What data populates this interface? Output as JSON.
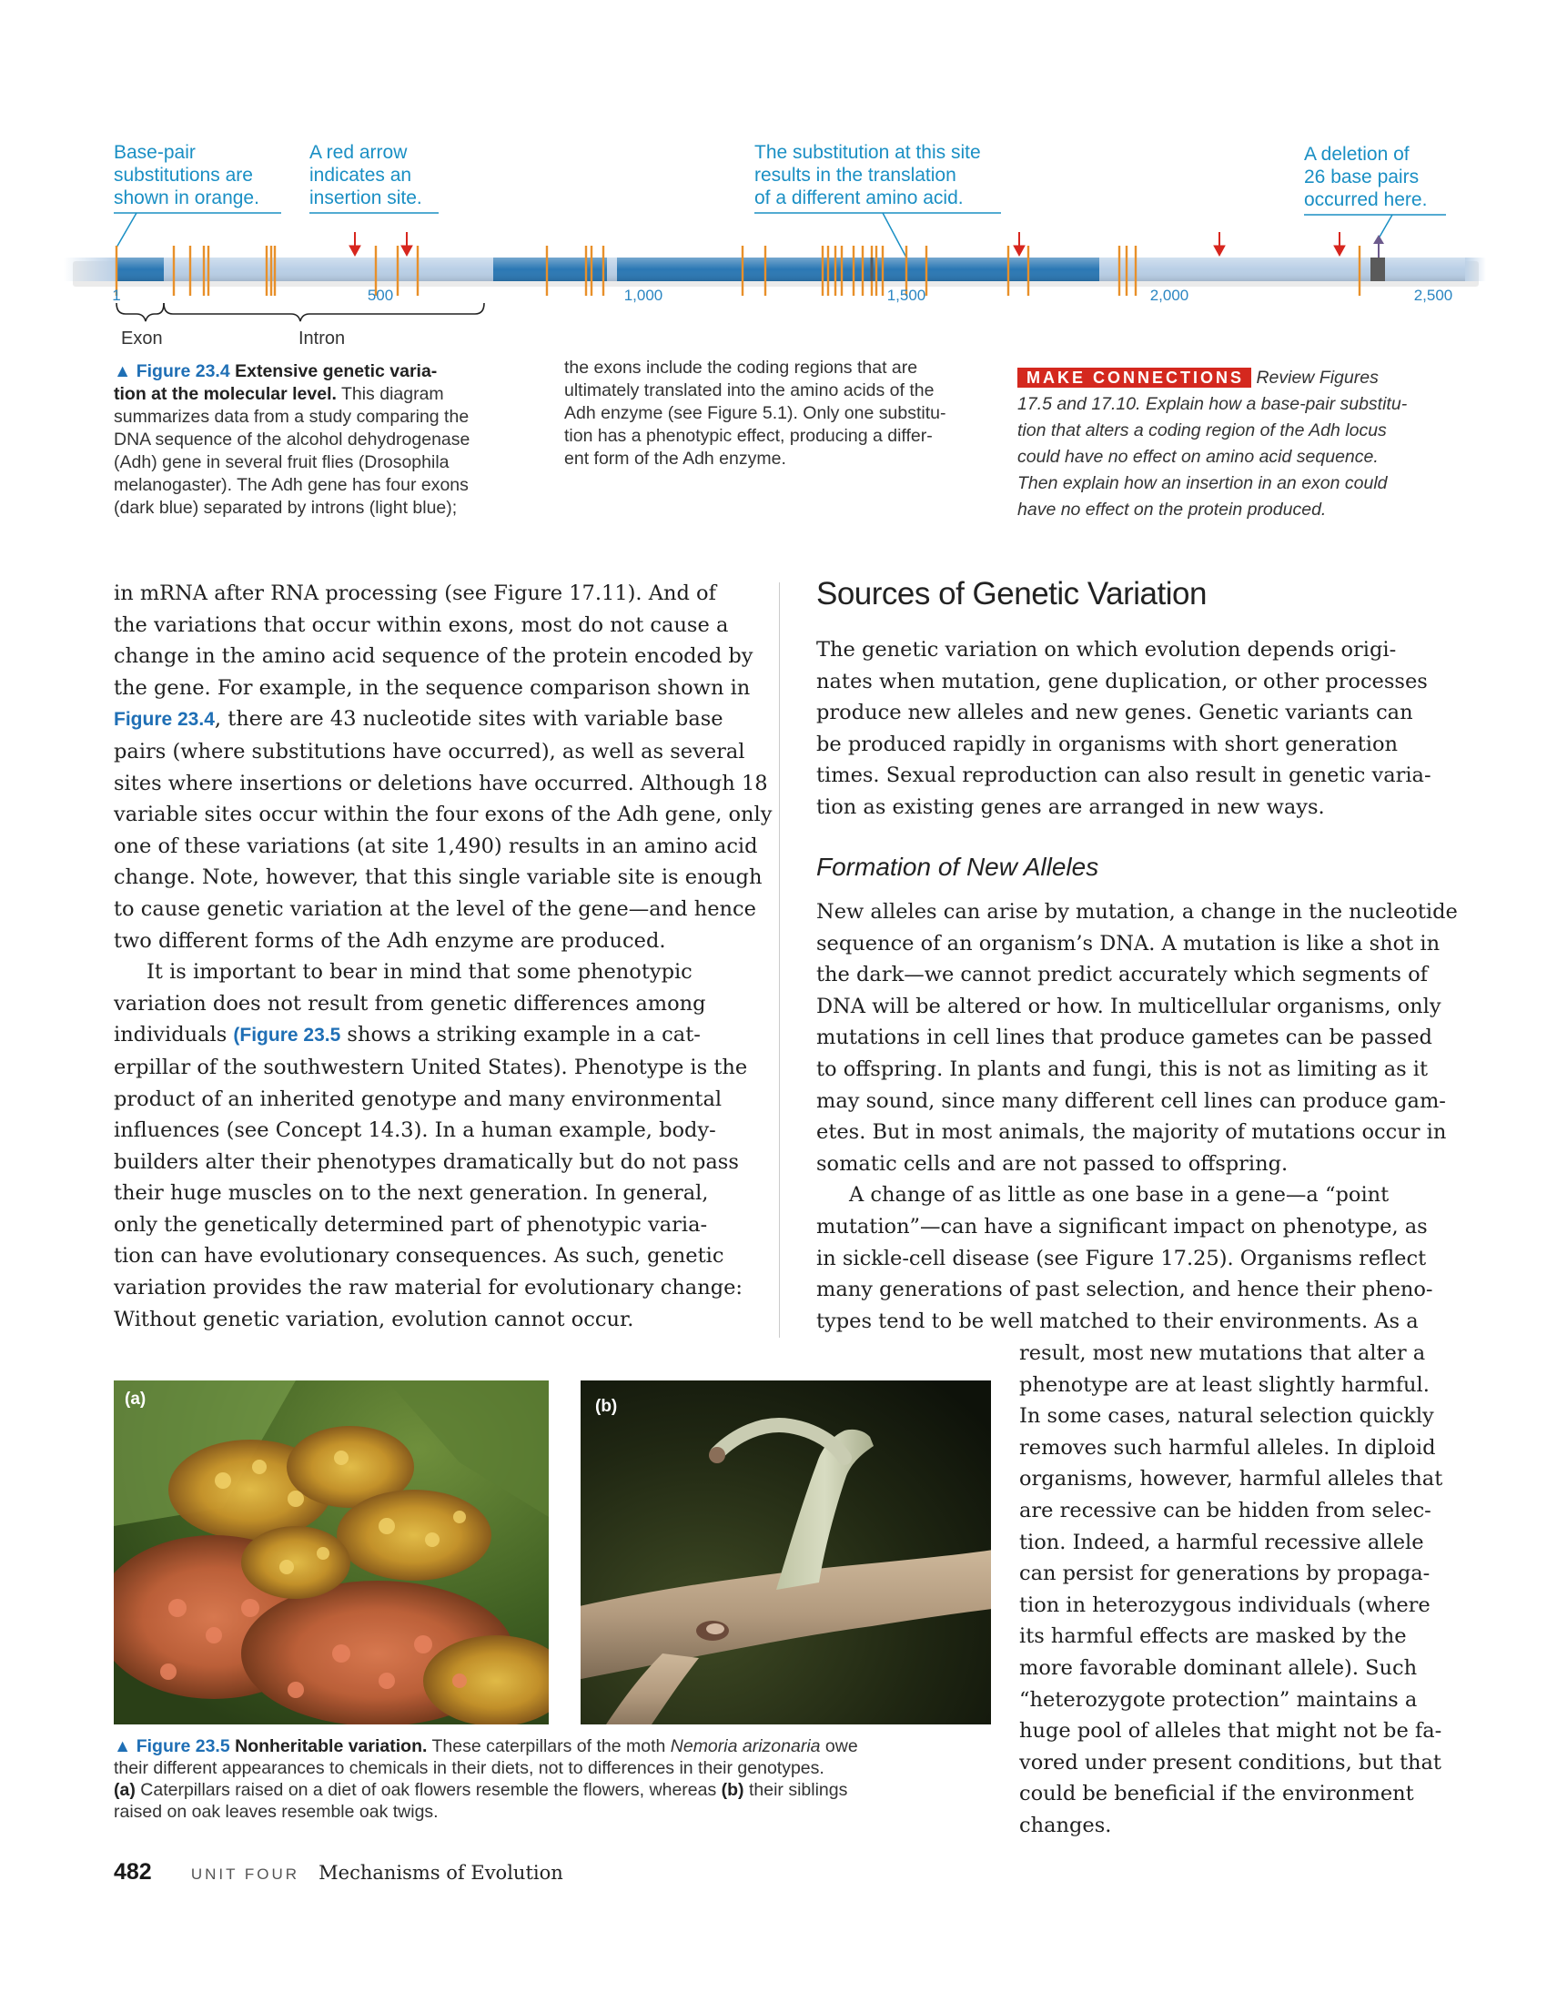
{
  "figure_23_4": {
    "callouts": {
      "substitutions": [
        "Base-pair",
        "substitutions are",
        "shown in orange."
      ],
      "insertion": [
        "A red arrow",
        "indicates an",
        "insertion site."
      ],
      "amino_acid": [
        "The substitution at this site",
        "results in the translation",
        "of a different amino acid."
      ],
      "deletion": [
        "A deletion of",
        "26 base pairs",
        "occurred here."
      ]
    },
    "axis_ticks": [
      "1",
      "500",
      "1,000",
      "1,500",
      "2,000",
      "2,500"
    ],
    "exon_label": "Exon",
    "intron_label": "Intron",
    "colors": {
      "exon": "#2b78b4",
      "intron": "#b9cfe6",
      "substitution": "#e8902a",
      "insertion": "#d7261e",
      "deletion": "#5a5a5a",
      "callout_text": "#1a8fc4"
    },
    "caption": {
      "figure_label": "▲ Figure 23.4",
      "title": "Extensive genetic varia-tion at the molecular level.",
      "lines": [
        [
          "▲ Figure 23.4",
          " Extensive genetic varia-"
        ],
        [
          "tion at the molecular level.",
          " This diagram"
        ],
        [
          "summarizes data from a study comparing the"
        ],
        [
          "DNA sequence of the alcohol dehydrogenase"
        ],
        [
          "(Adh) gene in several fruit flies (Drosophila"
        ],
        [
          "melanogaster). The Adh gene has four exons"
        ],
        [
          "(dark blue) separated by introns (light blue);"
        ]
      ],
      "col2": [
        "the exons include the coding regions that are",
        "ultimately translated into the amino acids of the",
        "Adh enzyme (see Figure 5.1). Only one substitu-",
        "tion has a phenotypic effect, producing a differ-",
        "ent form of the Adh enzyme."
      ]
    },
    "make_connections": {
      "tag": "MAKE CONNECTIONS",
      "lines": [
        "Review Figures",
        "17.5 and 17.10. Explain how a base-pair substitu-",
        "tion that alters a coding region of the Adh locus",
        "could have no effect on amino acid sequence.",
        "Then explain how an insertion in an exon could",
        "have no effect on the protein produced."
      ]
    }
  },
  "left_column": {
    "para1": [
      "in mRNA after RNA processing (see Figure 17.11). And of",
      "the variations that occur within exons, most do not cause a",
      "change in the amino acid sequence of the protein encoded by",
      "the gene. For example, in the sequence comparison shown in",
      ", there are 43 nucleotide sites with variable base",
      "pairs (where substitutions have occurred), as well as several",
      "sites where insertions or deletions have occurred. Although 18",
      "variable sites occur within the four exons of the Adh gene, only",
      "one of these variations (at site 1,490) results in an amino acid",
      "change. Note, however, that this single variable site is enough",
      "to cause genetic variation at the level of the gene—and hence",
      "two different forms of the Adh enzyme are produced."
    ],
    "fig_ref_23_4": "Figure 23.4",
    "para2": [
      "It is important to bear in mind that some phenotypic",
      "variation does not result from genetic differences among",
      "individuals ",
      " shows a striking example in a cat-",
      "erpillar of the southwestern United States). Phenotype is the",
      "product of an inherited genotype and many environmental",
      "influences (see Concept 14.3). In a human example, body-",
      "builders alter their phenotypes dramatically but do not pass",
      "their huge muscles on to the next generation. In general,",
      "only the genetically determined part of phenotypic varia-",
      "tion can have evolutionary consequences. As such, genetic",
      "variation provides the raw material for evolutionary change:",
      "Without genetic variation, evolution cannot occur."
    ],
    "fig_ref_23_5": "(Figure 23.5"
  },
  "right_column": {
    "heading": "Sources of Genetic Variation",
    "intro": [
      "The genetic variation on which evolution depends origi-",
      "nates when mutation, gene duplication, or other processes",
      "produce new alleles and new genes. Genetic variants can",
      "be produced rapidly in organisms with short generation",
      "times. Sexual reproduction can also result in genetic varia-",
      "tion as existing genes are arranged in new ways."
    ],
    "subheading": "Formation of New Alleles",
    "para1": [
      "New alleles can arise by mutation, a change in the nucleotide",
      "sequence of an organism’s DNA. A mutation is like a shot in",
      "the dark—we cannot predict accurately which segments of",
      "DNA will be altered or how. In multicellular organisms, only",
      "mutations in cell lines that produce gametes can be passed",
      "to offspring. In plants and fungi, this is not as limiting as it",
      "may sound, since many different cell lines can produce gam-",
      "etes. But in most animals, the majority of mutations occur in",
      "somatic cells and are not passed to offspring."
    ],
    "para2": [
      "A change of as little as one base in a gene—a “point",
      "mutation”—can have a significant impact on phenotype, as",
      "in sickle-cell disease (see Figure 17.25). Organisms reflect",
      "many generations of past selection, and hence their pheno-",
      "types tend to be well matched to their environments. As a"
    ],
    "para2_narrow": [
      "result, most new mutations that alter a",
      "phenotype are at least slightly harmful.",
      "In some cases, natural selection quickly",
      "removes such harmful alleles. In diploid",
      "organisms, however, harmful alleles that",
      "are recessive can be hidden from selec-",
      "tion. Indeed, a harmful recessive allele",
      "can persist for generations by propaga-",
      "tion in heterozygous individuals (where",
      "its harmful effects are masked by the",
      "more favorable dominant allele). Such",
      "“heterozygote protection” maintains a",
      "huge pool of alleles that might not be fa-",
      "vored under present conditions, but that",
      "could be beneficial if the environment",
      "changes."
    ]
  },
  "figure_23_5": {
    "label_a": "(a)",
    "label_b": "(b)",
    "caption_lines": [
      [
        "▲ Figure 23.5",
        " Nonheritable variation.",
        " These caterpillars of the moth ",
        "Nemoria arizonaria",
        " owe"
      ],
      [
        "their different appearances to chemicals in their diets, not to differences in their genotypes."
      ],
      [
        "(a)",
        " Caterpillars raised on a diet of oak flowers resemble the flowers, whereas ",
        "(b)",
        " their siblings"
      ],
      [
        "raised on oak leaves resemble oak twigs."
      ]
    ]
  },
  "footer": {
    "page_number": "482",
    "unit": "UNIT FOUR",
    "title": "Mechanisms of Evolution"
  }
}
